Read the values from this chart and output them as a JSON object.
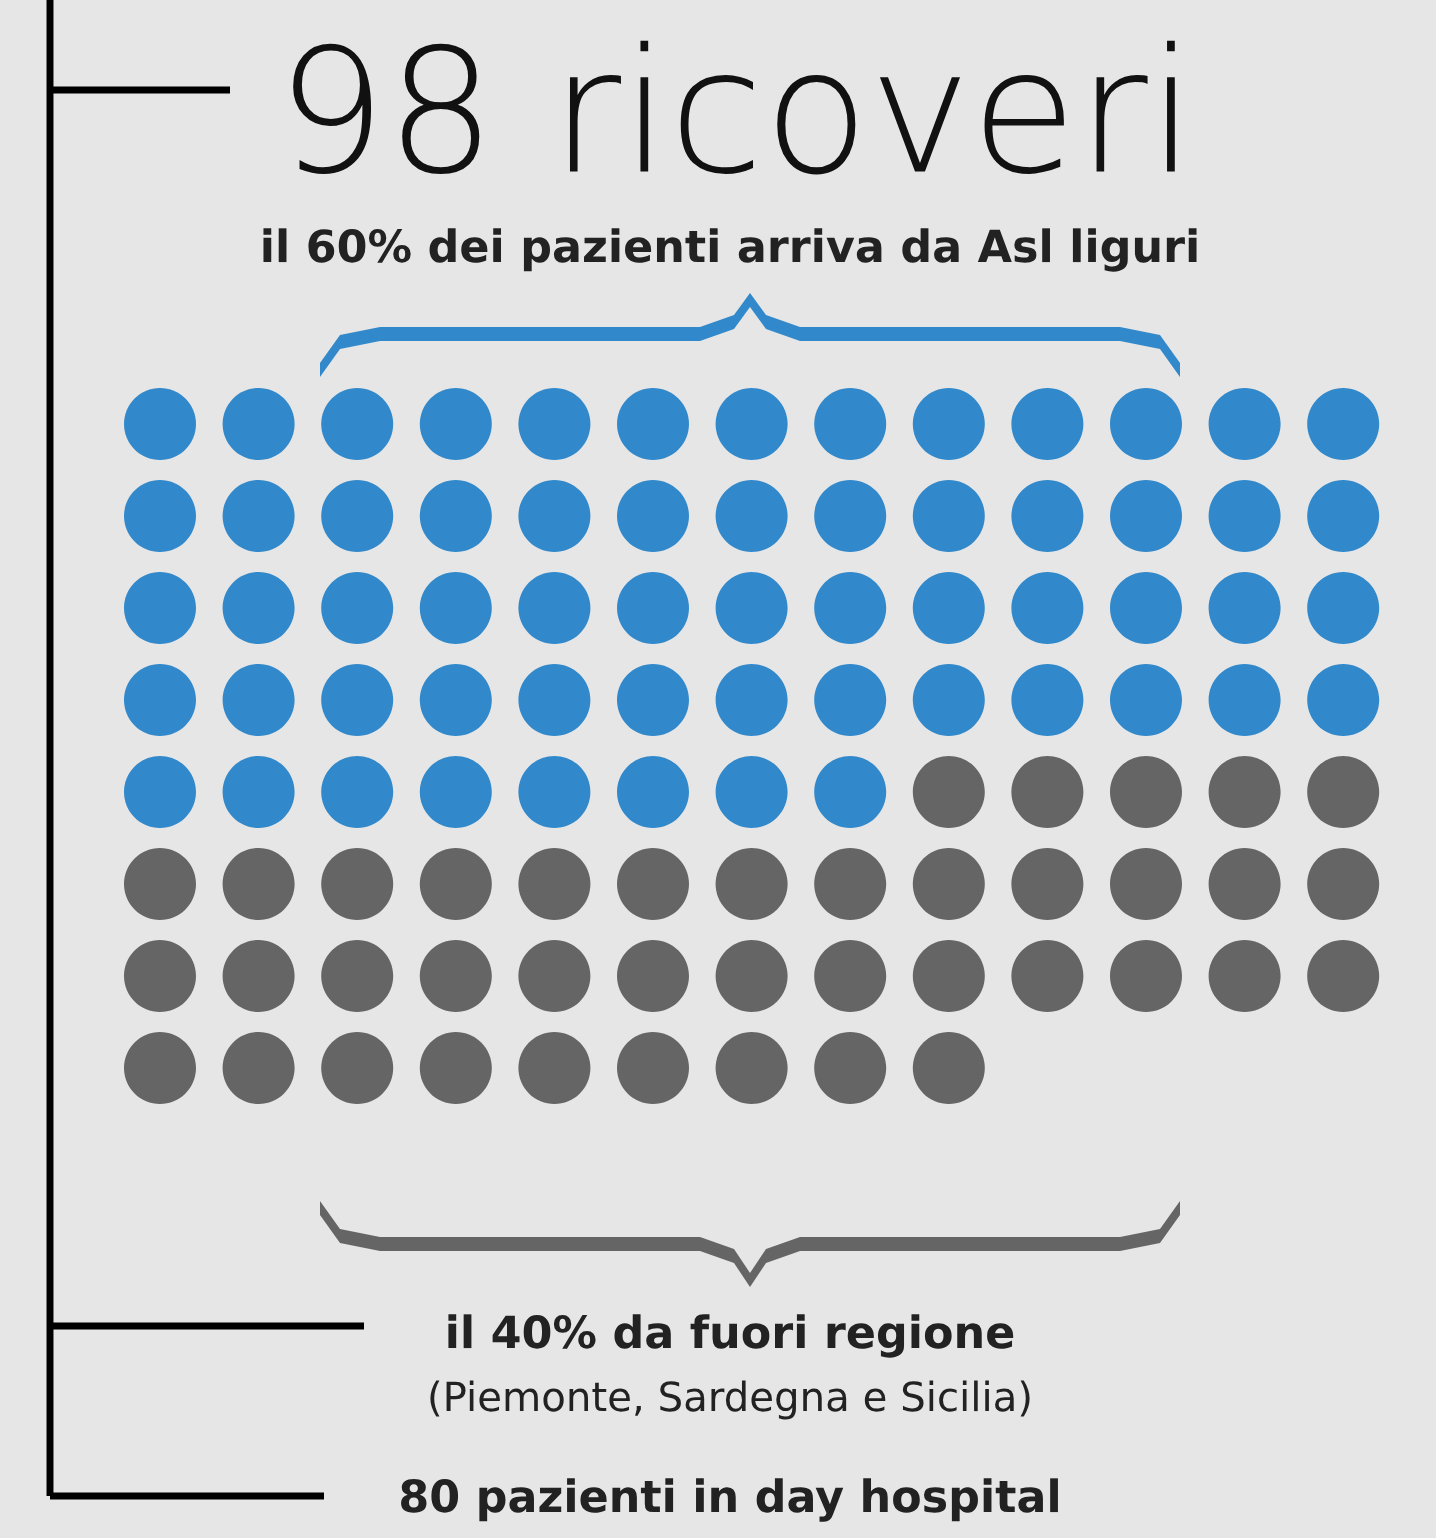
{
  "chart_data": {
    "type": "other",
    "title": "98 ricoveri",
    "categories": [
      null,
      null
    ],
    "values": [
      60,
      40
    ],
    "colors": [
      "#3189cb",
      "#656565"
    ],
    "value_labels": [
      "il 60% dei pazienti arriva da Asl liguri",
      "il 40% da fuori regione"
    ],
    "annotations": [
      "(Piemonte, Sardegna e Sicilia)",
      "80 pazienti in day hospital"
    ]
  }
}
